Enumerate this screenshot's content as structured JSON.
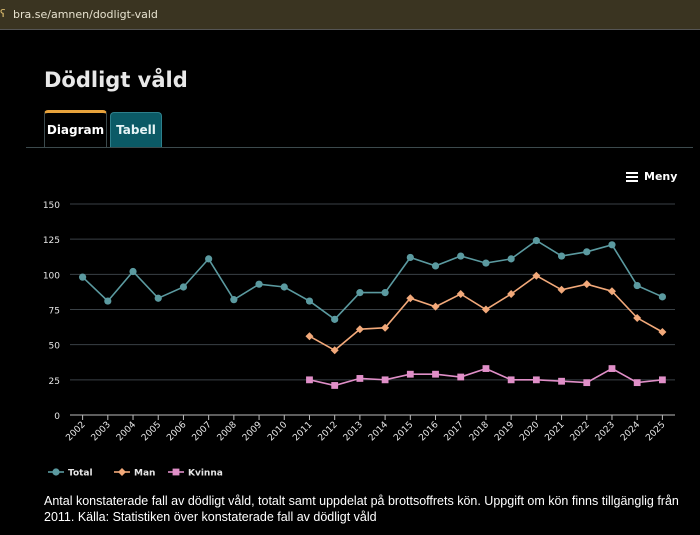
{
  "browser": {
    "url": "bra.se/amnen/dodligt-vald",
    "lock_glyph": "ʕ"
  },
  "page": {
    "title": "Dödligt våld"
  },
  "tabs": [
    {
      "label": "Diagram",
      "active": true
    },
    {
      "label": "Tabell",
      "active": false
    }
  ],
  "menu": {
    "label": "Meny"
  },
  "chart_data": {
    "type": "line",
    "x": [
      "2002",
      "2003",
      "2004",
      "2005",
      "2006",
      "2007",
      "2008",
      "2009",
      "2010",
      "2011",
      "2012",
      "2013",
      "2014",
      "2015",
      "2016",
      "2017",
      "2018",
      "2019",
      "2020",
      "2021",
      "2022",
      "2023",
      "2024",
      "2025"
    ],
    "ylim": [
      0,
      150
    ],
    "yticks": [
      0,
      25,
      50,
      75,
      100,
      125,
      150
    ],
    "grid": true,
    "legend_position": "bottom-left",
    "series": [
      {
        "name": "Total",
        "color": "#5b9aa0",
        "marker": "circle",
        "values": [
          98,
          81,
          102,
          83,
          91,
          111,
          82,
          93,
          91,
          81,
          68,
          87,
          87,
          112,
          106,
          113,
          108,
          111,
          124,
          113,
          116,
          121,
          92,
          84
        ]
      },
      {
        "name": "Man",
        "color": "#f2a97a",
        "marker": "diamond",
        "values": [
          null,
          null,
          null,
          null,
          null,
          null,
          null,
          null,
          null,
          56,
          46,
          61,
          62,
          83,
          77,
          86,
          75,
          86,
          99,
          89,
          93,
          88,
          69,
          59
        ]
      },
      {
        "name": "Kvinna",
        "color": "#e08fc8",
        "marker": "square",
        "values": [
          null,
          null,
          null,
          null,
          null,
          null,
          null,
          null,
          null,
          25,
          21,
          26,
          25,
          29,
          29,
          27,
          33,
          25,
          25,
          24,
          23,
          33,
          23,
          25
        ]
      }
    ]
  },
  "caption": "Antal konstaterade fall av dödligt våld, totalt samt uppdelat på brottsoffrets kön. Uppgift om kön finns tillgänglig från 2011. Källa: Statistiken över konstaterade fall av dödligt våld"
}
